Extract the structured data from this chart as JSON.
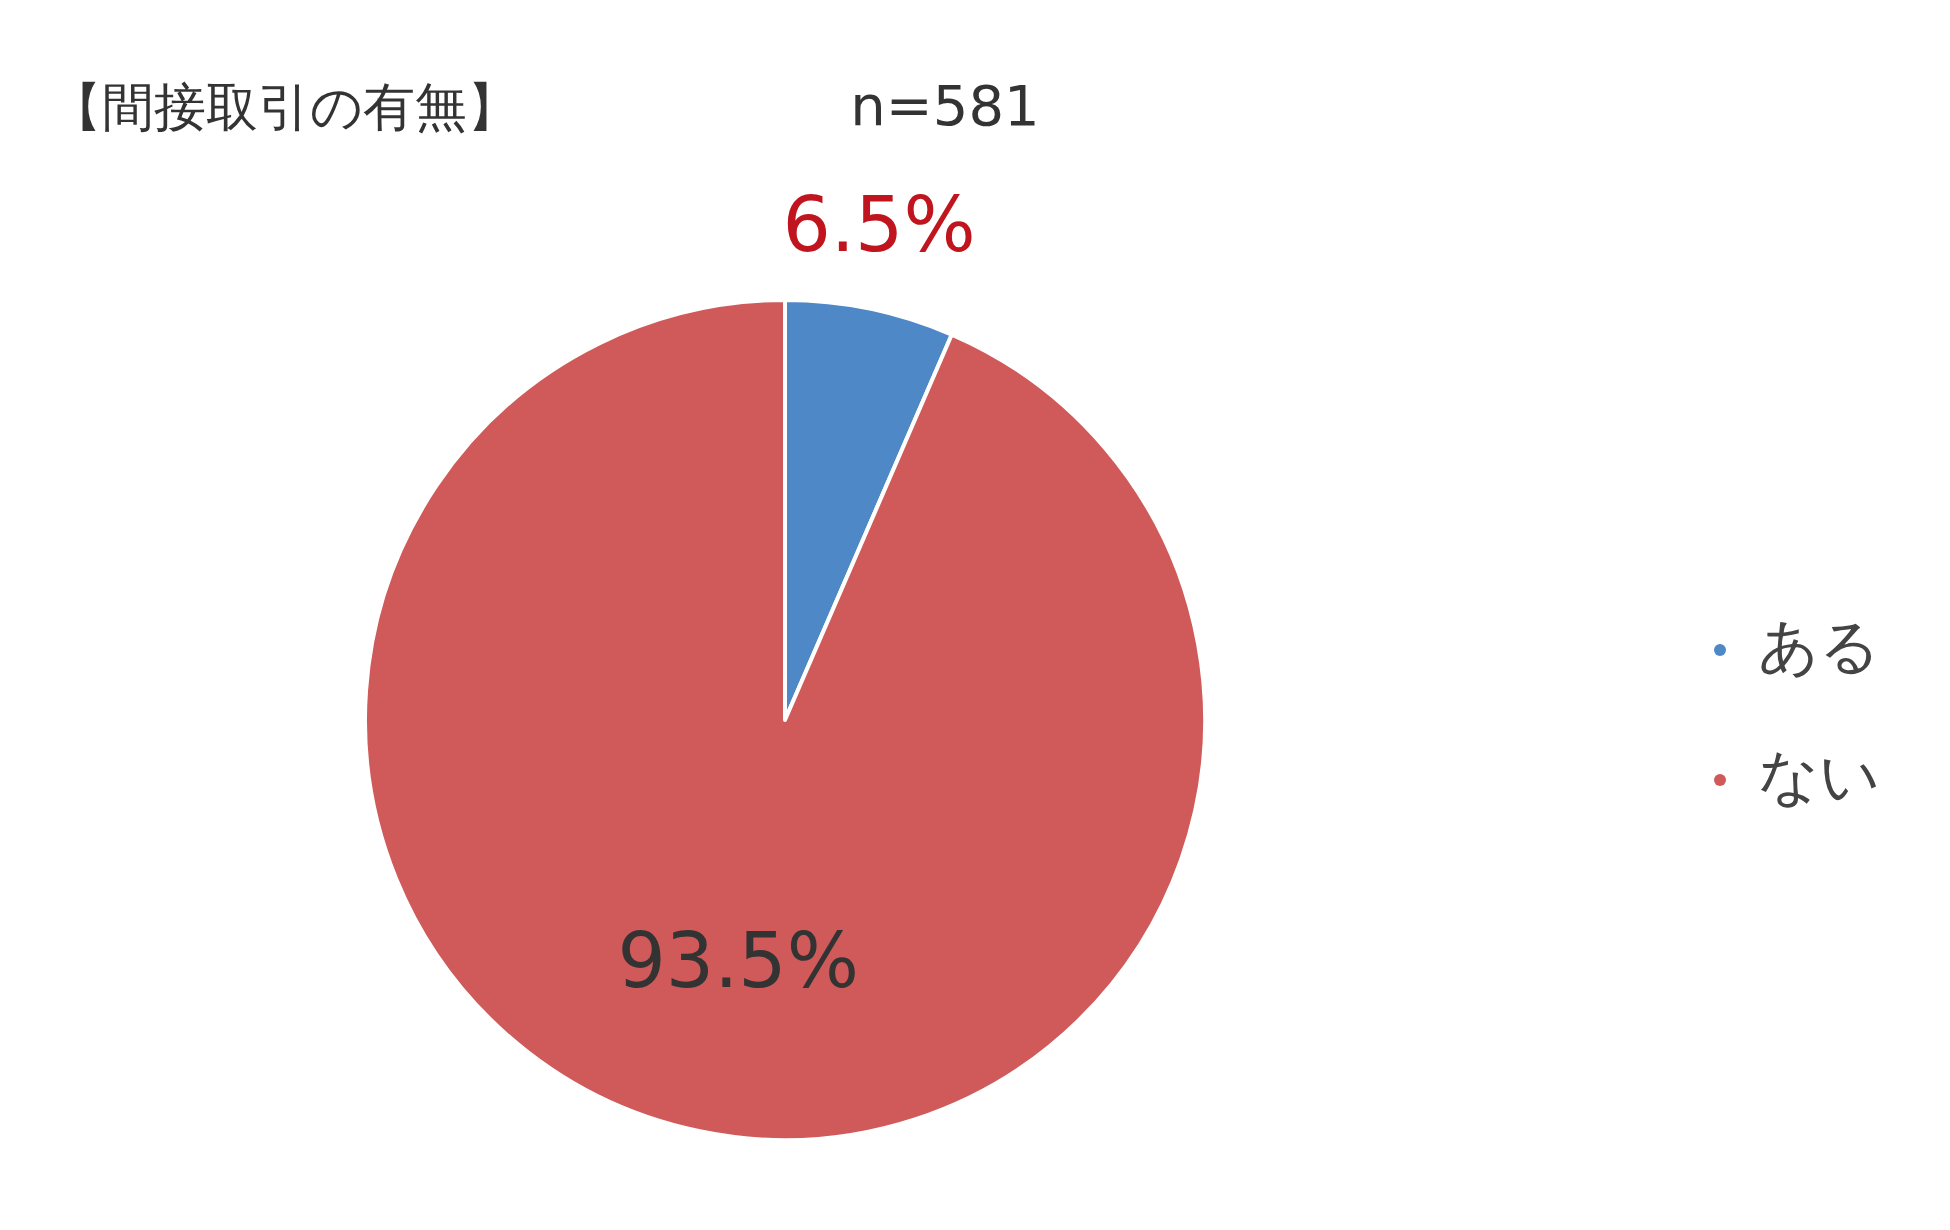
{
  "chart_data": {
    "type": "pie",
    "title": "【間接取引の有無】",
    "subtitle": "n=581",
    "categories": [
      "ある",
      "ない"
    ],
    "values": [
      6.5,
      93.5
    ],
    "colors": [
      "#4f88c6",
      "#d05a5a"
    ],
    "value_labels": [
      "6.5%",
      "93.5%"
    ],
    "legend": "right"
  }
}
